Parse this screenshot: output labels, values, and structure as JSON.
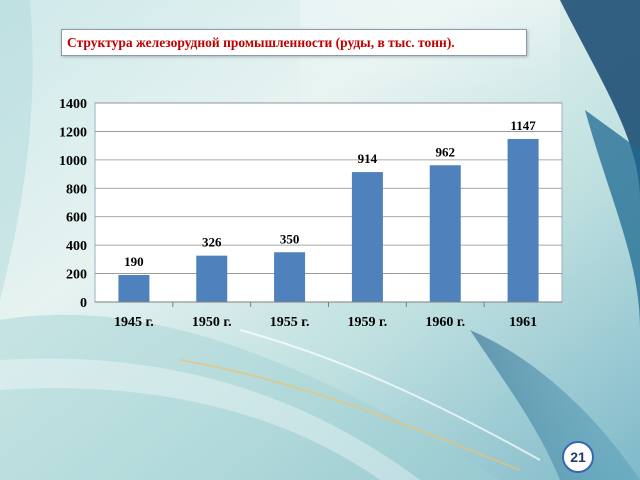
{
  "slide": {
    "title": "Структура железорудной промышленности (руды, в тыс. тонн).",
    "page_number": "21"
  },
  "colors": {
    "bar": "#4f81bd",
    "title_text": "#c00000",
    "badge_border": "#3a66b0"
  },
  "chart_data": {
    "type": "bar",
    "title": "Структура железорудной промышленности (руды, в тыс. тонн).",
    "categories": [
      "1945 г.",
      "1950 г.",
      "1955 г.",
      "1959 г.",
      "1960 г.",
      "1961"
    ],
    "values": [
      190,
      326,
      350,
      914,
      962,
      1147
    ],
    "data_labels": [
      "190",
      "326",
      "350",
      "914",
      "962",
      "1147"
    ],
    "yticks": [
      "0",
      "200",
      "400",
      "600",
      "800",
      "1000",
      "1200",
      "1400"
    ],
    "ylim": [
      0,
      1400
    ],
    "xlabel": "",
    "ylabel": "",
    "grid": true,
    "legend": "none"
  }
}
